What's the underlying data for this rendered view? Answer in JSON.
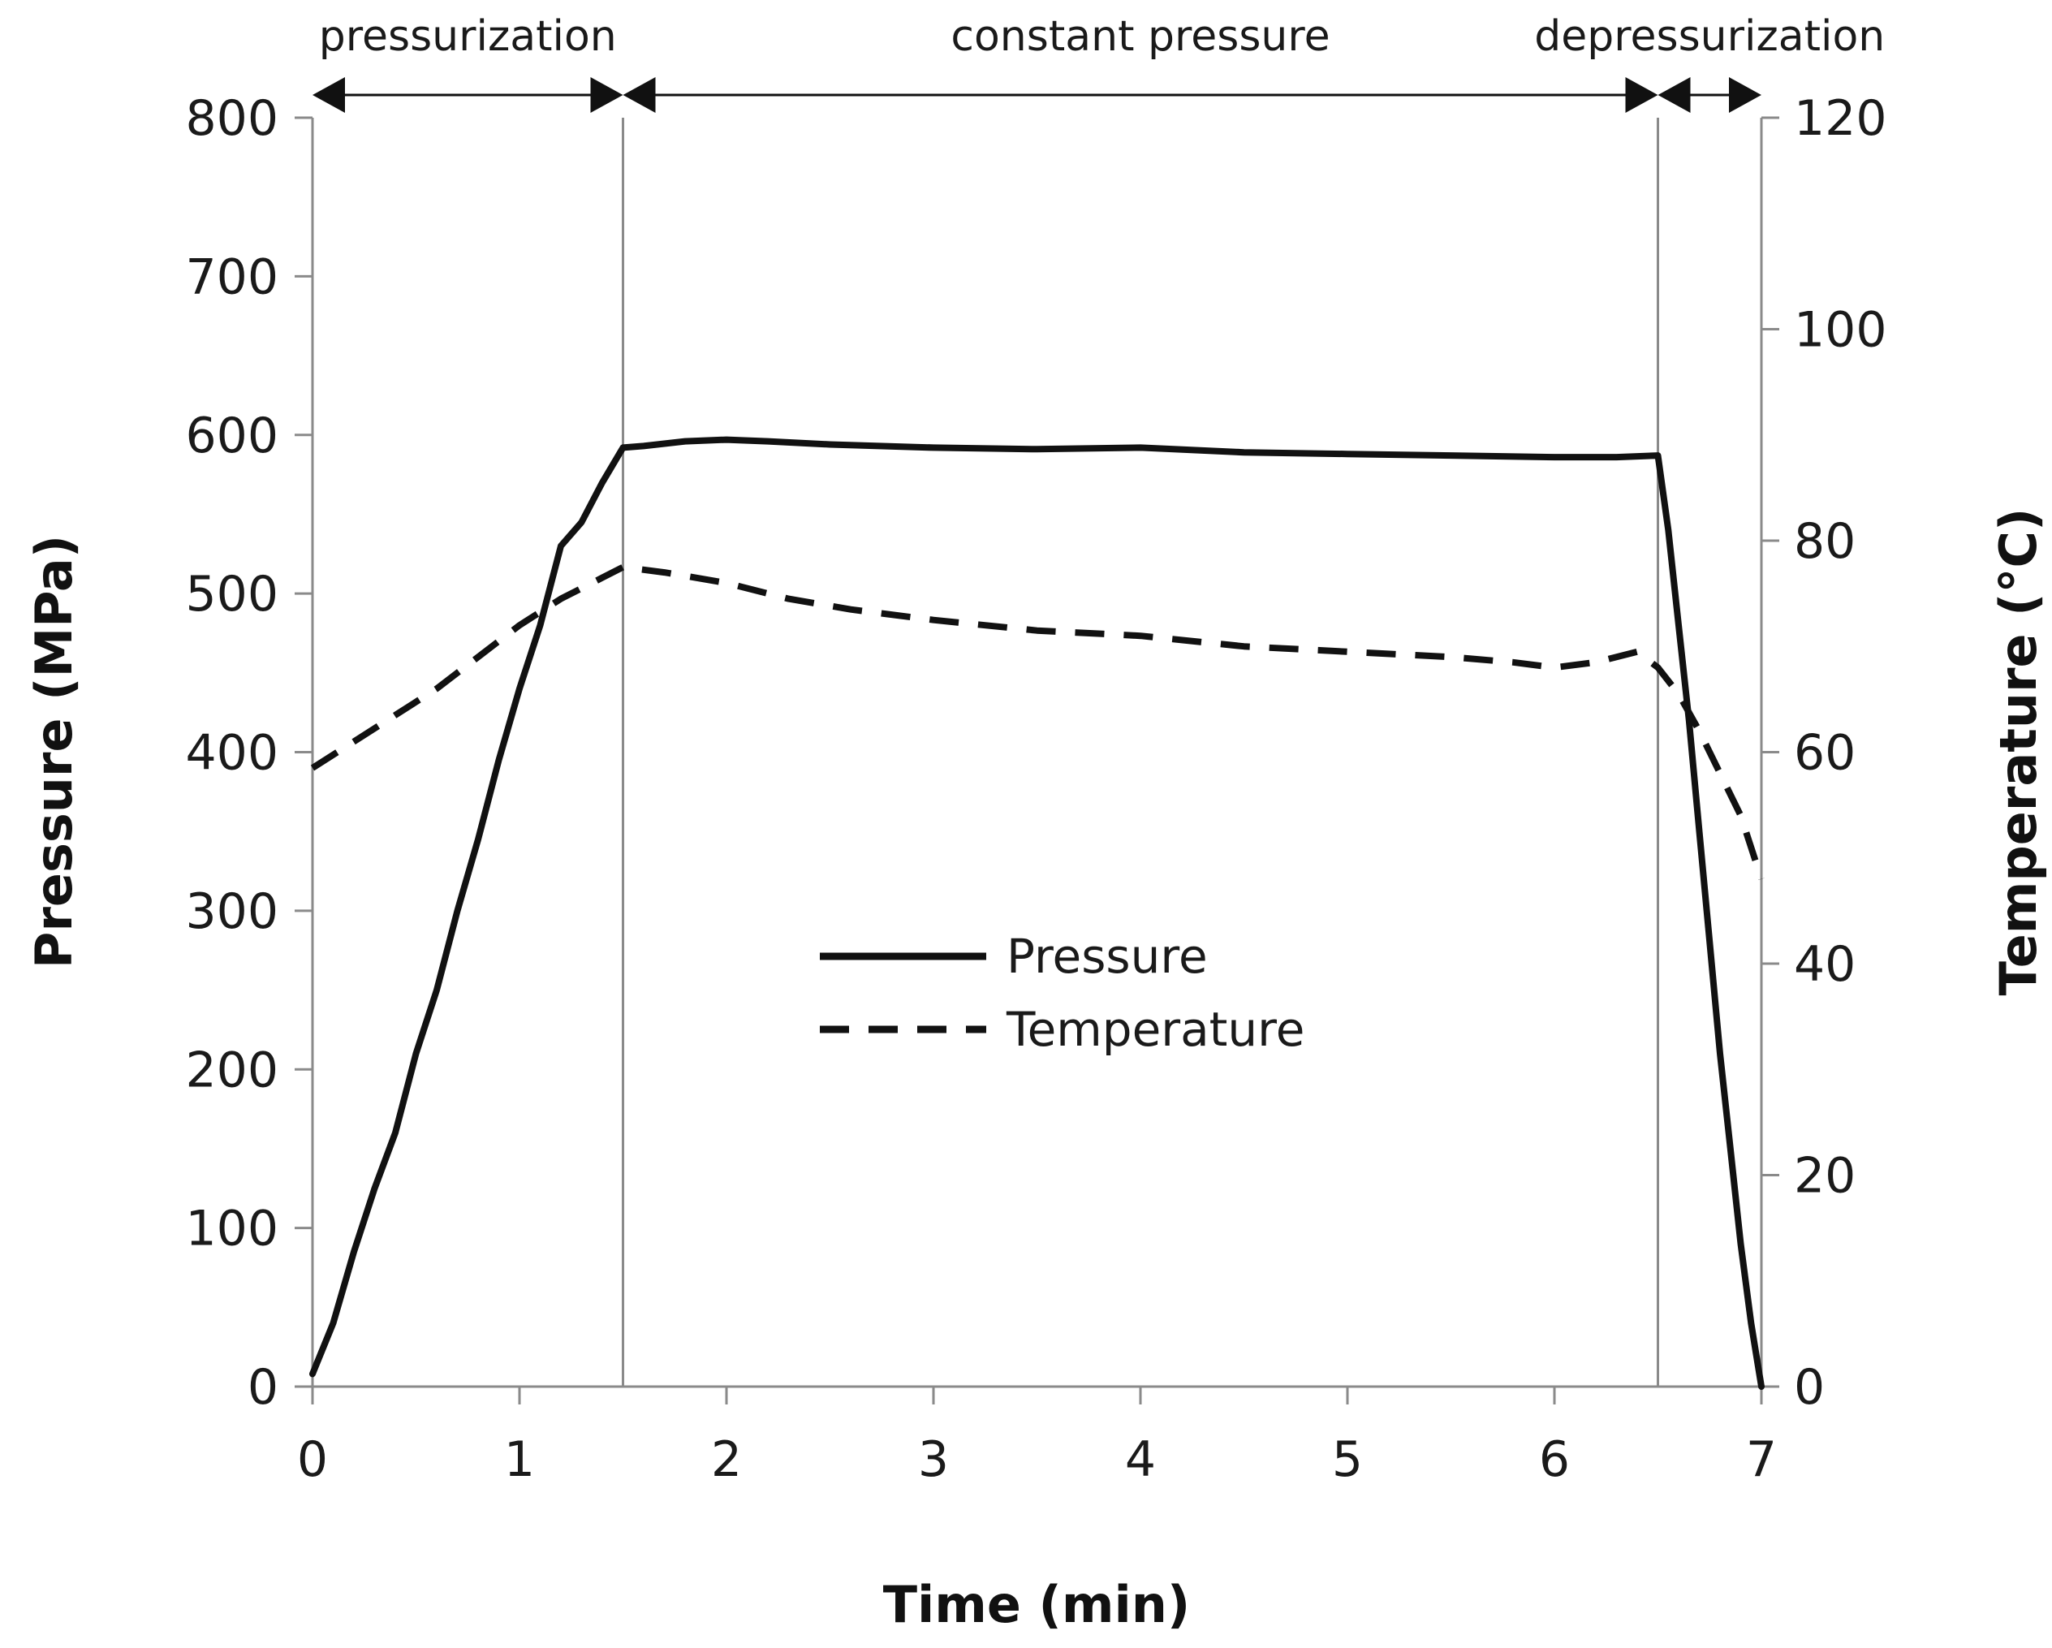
{
  "chart_data": {
    "type": "line",
    "title": "",
    "xlabel": "Time (min)",
    "ylabel": "Pressure (MPa)",
    "y2label": "Temperature (°C)",
    "xlim": [
      0,
      7
    ],
    "ylim": [
      0,
      800
    ],
    "y2lim": [
      0,
      120
    ],
    "xticks": [
      0,
      1,
      2,
      3,
      4,
      5,
      6,
      7
    ],
    "yticks": [
      0,
      100,
      200,
      300,
      400,
      500,
      600,
      700,
      800
    ],
    "y2ticks": [
      0,
      20,
      40,
      60,
      80,
      100,
      120
    ],
    "grid": false,
    "legend": "center",
    "phase_boundaries": [
      1.5,
      6.5
    ],
    "phases": [
      {
        "label": "pressurization",
        "start": 0,
        "end": 1.5
      },
      {
        "label": "constant pressure",
        "start": 1.5,
        "end": 6.5
      },
      {
        "label": "depressurization",
        "start": 6.5,
        "end": 7
      }
    ],
    "series": [
      {
        "name": "Pressure",
        "axis": "left",
        "style": "solid",
        "color": "#111111",
        "x": [
          0,
          0.1,
          0.2,
          0.3,
          0.4,
          0.5,
          0.6,
          0.7,
          0.8,
          0.9,
          1.0,
          1.1,
          1.2,
          1.3,
          1.4,
          1.5,
          1.6,
          1.8,
          2.0,
          2.2,
          2.5,
          3.0,
          3.5,
          4.0,
          4.5,
          5.0,
          5.5,
          6.0,
          6.3,
          6.5,
          6.55,
          6.6,
          6.65,
          6.7,
          6.75,
          6.8,
          6.85,
          6.9,
          6.95,
          7.0
        ],
        "values": [
          8,
          40,
          85,
          125,
          160,
          210,
          250,
          300,
          345,
          395,
          440,
          480,
          530,
          545,
          570,
          592,
          593,
          596,
          597,
          596,
          594,
          592,
          591,
          592,
          589,
          588,
          587,
          586,
          586,
          587,
          540,
          480,
          420,
          350,
          280,
          210,
          150,
          90,
          40,
          0
        ]
      },
      {
        "name": "Temperature",
        "axis": "right",
        "style": "dashed",
        "color": "#111111",
        "x": [
          0,
          0.2,
          0.4,
          0.6,
          0.8,
          1.0,
          1.2,
          1.4,
          1.5,
          1.7,
          2.0,
          2.3,
          2.6,
          3.0,
          3.5,
          4.0,
          4.5,
          5.0,
          5.5,
          5.8,
          6.0,
          6.2,
          6.4,
          6.5,
          6.6,
          6.7,
          6.8,
          6.9,
          7.0
        ],
        "values": [
          58.5,
          61,
          63.5,
          66,
          69,
          72,
          74.5,
          76.5,
          77.5,
          77,
          76,
          74.5,
          73.5,
          72.5,
          71.5,
          71,
          70,
          69.5,
          69,
          68.5,
          68,
          68.5,
          69.5,
          68,
          65.5,
          62,
          58,
          54,
          48
        ]
      }
    ]
  }
}
